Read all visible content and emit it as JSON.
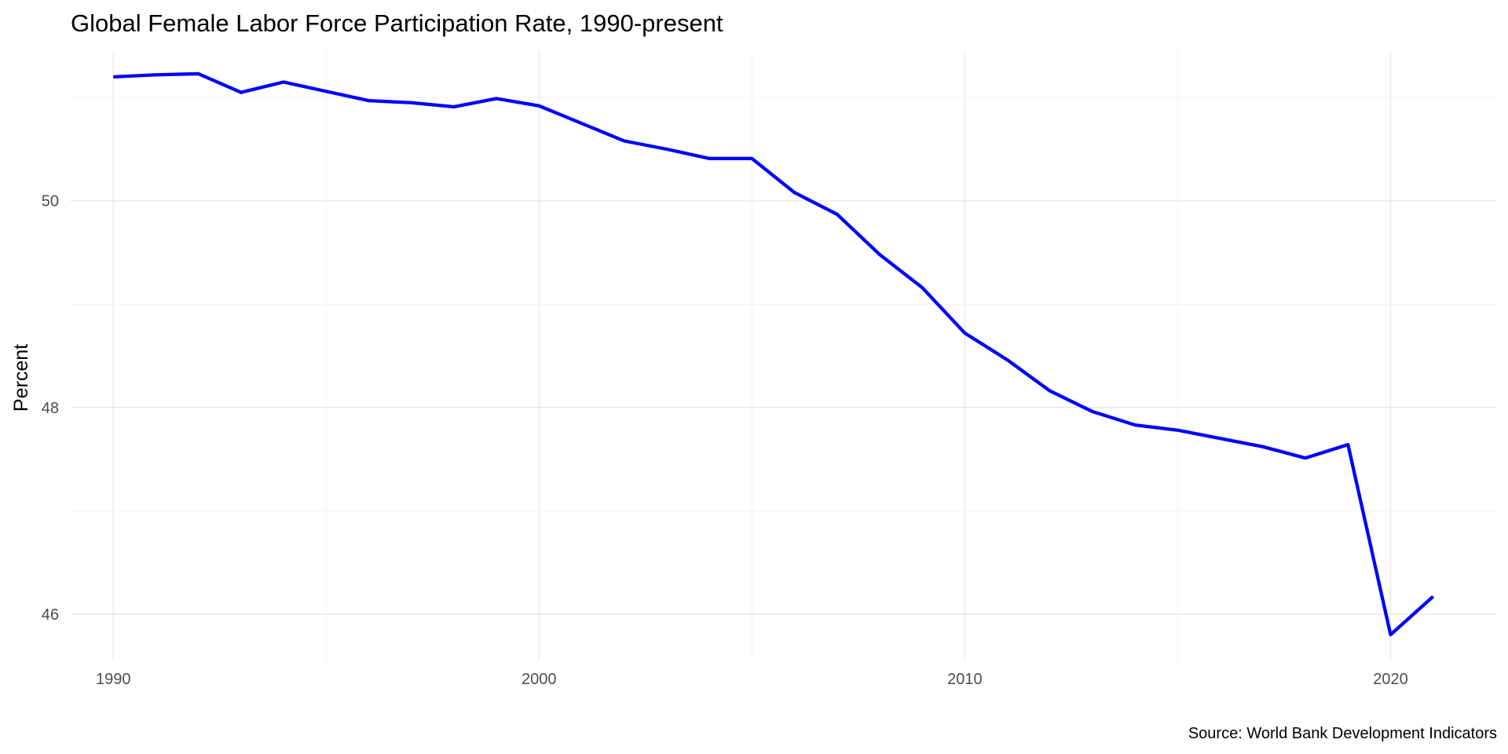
{
  "chart_data": {
    "type": "line",
    "title": "Global Female Labor Force Participation Rate, 1990-present",
    "xlabel": "",
    "ylabel": "Percent",
    "caption": "Source: World Bank Development Indicators",
    "xlim": [
      1989,
      2022.5
    ],
    "ylim": [
      45.55,
      51.45
    ],
    "x_ticks": [
      1990,
      2000,
      2010,
      2020
    ],
    "x_tick_labels": [
      "1990",
      "2000",
      "2010",
      "2020"
    ],
    "x_minor_ticks": [
      1995,
      2005,
      2015
    ],
    "y_ticks": [
      46,
      48,
      50
    ],
    "y_tick_labels": [
      "46",
      "48",
      "50"
    ],
    "y_minor_ticks": [
      47,
      49,
      51
    ],
    "grid": true,
    "legend": "none",
    "series": [
      {
        "color": "#0000ff",
        "x": [
          1990,
          1991,
          1992,
          1993,
          1994,
          1995,
          1996,
          1997,
          1998,
          1999,
          2000,
          2001,
          2002,
          2003,
          2004,
          2005,
          2006,
          2007,
          2008,
          2009,
          2010,
          2011,
          2012,
          2013,
          2014,
          2015,
          2016,
          2017,
          2018,
          2019,
          2020,
          2021
        ],
        "y": [
          51.2,
          51.22,
          51.23,
          51.05,
          51.15,
          51.06,
          50.97,
          50.95,
          50.91,
          50.99,
          50.92,
          50.75,
          50.58,
          50.5,
          50.41,
          50.41,
          50.08,
          49.87,
          49.48,
          49.16,
          48.72,
          48.46,
          48.16,
          47.96,
          47.83,
          47.78,
          47.7,
          47.62,
          47.51,
          47.64,
          45.8,
          46.17
        ]
      }
    ]
  }
}
